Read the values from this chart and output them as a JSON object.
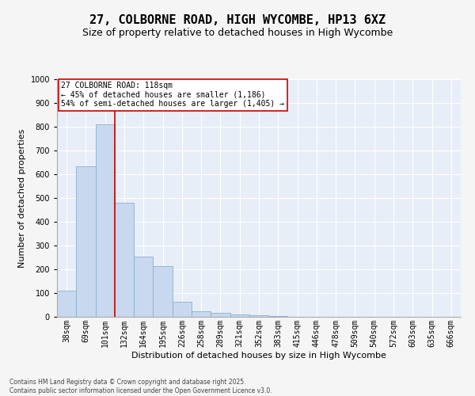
{
  "title_line1": "27, COLBORNE ROAD, HIGH WYCOMBE, HP13 6XZ",
  "title_line2": "Size of property relative to detached houses in High Wycombe",
  "xlabel": "Distribution of detached houses by size in High Wycombe",
  "ylabel": "Number of detached properties",
  "categories": [
    "38sqm",
    "69sqm",
    "101sqm",
    "132sqm",
    "164sqm",
    "195sqm",
    "226sqm",
    "258sqm",
    "289sqm",
    "321sqm",
    "352sqm",
    "383sqm",
    "415sqm",
    "446sqm",
    "478sqm",
    "509sqm",
    "540sqm",
    "572sqm",
    "603sqm",
    "635sqm",
    "666sqm"
  ],
  "values": [
    110,
    635,
    810,
    480,
    255,
    215,
    65,
    25,
    18,
    10,
    6,
    5,
    1,
    0,
    0,
    0,
    0,
    0,
    0,
    0,
    0
  ],
  "bar_color": "#c8d8ee",
  "bar_edge_color": "#8ab0d0",
  "vline_color": "#cc0000",
  "annotation_text": "27 COLBORNE ROAD: 118sqm\n← 45% of detached houses are smaller (1,186)\n54% of semi-detached houses are larger (1,405) →",
  "annotation_box_color": "#cc0000",
  "ylim": [
    0,
    1000
  ],
  "yticks": [
    0,
    100,
    200,
    300,
    400,
    500,
    600,
    700,
    800,
    900,
    1000
  ],
  "plot_bg_color": "#e8eef8",
  "grid_color": "#ffffff",
  "fig_bg_color": "#f5f5f5",
  "footer_text": "Contains HM Land Registry data © Crown copyright and database right 2025.\nContains public sector information licensed under the Open Government Licence v3.0.",
  "title_fontsize": 11,
  "subtitle_fontsize": 9,
  "axis_label_fontsize": 8,
  "tick_fontsize": 7,
  "annotation_fontsize": 7,
  "vline_bin_index": 2
}
